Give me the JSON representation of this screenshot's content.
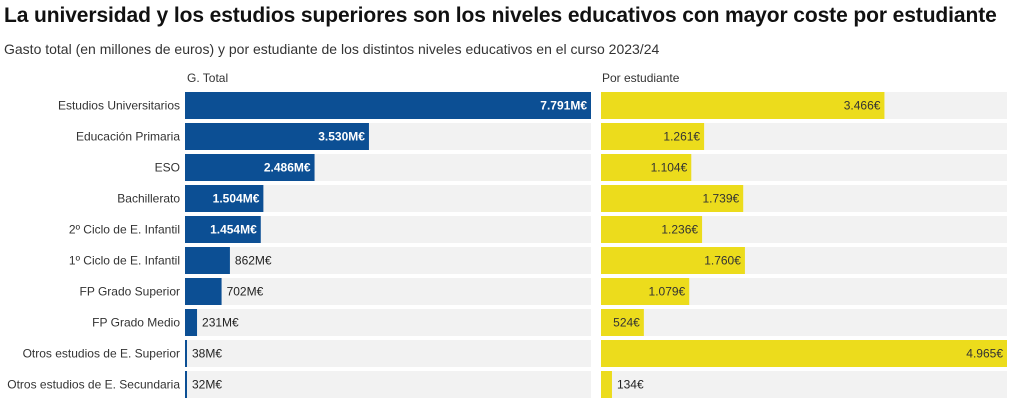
{
  "title": "La universidad y los estudios superiores son los niveles educativos con mayor coste por estudiante",
  "subtitle": "Gasto total (en millones de euros) y por estudiante de los distintos niveles educativos en el curso 2023/24",
  "colors": {
    "total_bar": "#0c4f94",
    "student_bar": "#ecdc1c",
    "track": "#f2f2f2"
  },
  "chart_data": {
    "type": "bar",
    "orientation": "horizontal",
    "title": "La universidad y los estudios superiores son los niveles educativos con mayor coste por estudiante",
    "subtitle": "Gasto total (en millones de euros) y por estudiante de los distintos niveles educativos en el curso 2023/24",
    "categories": [
      "Estudios Universitarios",
      "Educación Primaria",
      "ESO",
      "Bachillerato",
      "2º Ciclo de E. Infantil",
      "1º Ciclo de E. Infantil",
      "FP Grado Superior",
      "FP Grado Medio",
      "Otros estudios de E. Superior",
      "Otros estudios de E. Secundaria"
    ],
    "series": [
      {
        "name": "G. Total",
        "unit": "M€",
        "values": [
          7791,
          3530,
          2486,
          1504,
          1454,
          862,
          702,
          231,
          38,
          32
        ],
        "labels": [
          "7.791M€",
          "3.530M€",
          "2.486M€",
          "1.504M€",
          "1.454M€",
          "862M€",
          "702M€",
          "231M€",
          "38M€",
          "32M€"
        ],
        "xlim": [
          0,
          7791
        ]
      },
      {
        "name": "Por estudiante",
        "unit": "€",
        "values": [
          3466,
          1261,
          1104,
          1739,
          1236,
          1760,
          1079,
          524,
          4965,
          134
        ],
        "labels": [
          "3.466€",
          "1.261€",
          "1.104€",
          "1.739€",
          "1.236€",
          "1.760€",
          "1.079€",
          "524€",
          "4.965€",
          "134€"
        ],
        "xlim": [
          0,
          4965
        ]
      }
    ],
    "grid": false,
    "legend": "none"
  }
}
